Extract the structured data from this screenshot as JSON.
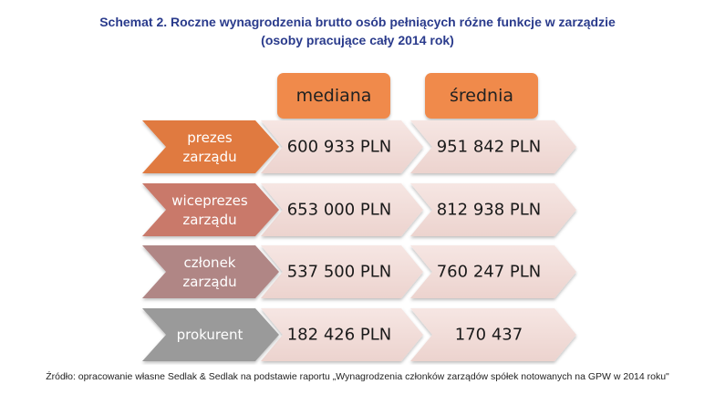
{
  "title": {
    "line1": "Schemat 2. Roczne wynagrodzenia brutto osób pełniących różne funkcje w zarządzie",
    "line2": "(osoby pracujące cały 2014 rok)"
  },
  "headers": {
    "median": "mediana",
    "mean": "średnia",
    "color": "#f08a4b"
  },
  "rows": [
    {
      "role": [
        "prezes",
        "zarządu"
      ],
      "median": "600 933 PLN",
      "mean": "951 842 PLN",
      "color": "#e07a3f"
    },
    {
      "role": [
        "wiceprezes",
        "zarządu"
      ],
      "median": "653 000 PLN",
      "mean": "812 938 PLN",
      "color": "#c9796a"
    },
    {
      "role": [
        "członek",
        "zarządu"
      ],
      "median": "537 500 PLN",
      "mean": "760 247 PLN",
      "color": "#b08685"
    },
    {
      "role": [
        "prokurent"
      ],
      "median": "182 426 PLN",
      "mean": "170 437",
      "color": "#9a9a9a"
    }
  ],
  "source": "Źródło: opracowanie własne Sedlak & Sedlak na podstawie raportu „Wynagrodzenia członków zarządów spółek notowanych na GPW w 2014 roku\""
}
